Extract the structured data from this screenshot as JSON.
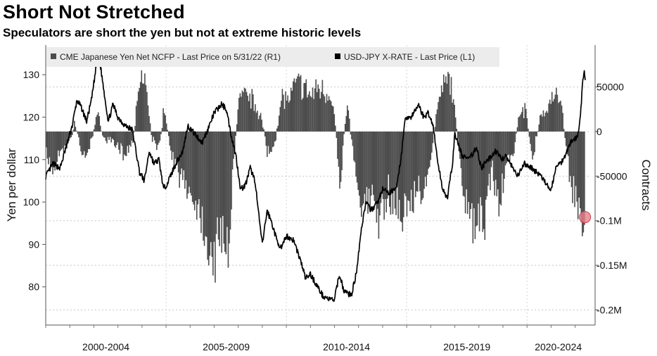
{
  "title": "Short Not Stretched",
  "subtitle": "Speculators are short the yen but not at extreme historic levels",
  "chart_data": {
    "type": "bar+line",
    "legend": {
      "placement": "top-left",
      "entries": [
        {
          "label": "CME Japanese Yen Net NCFP - Last Price on 5/31/22 (R1)",
          "color": "#4d4d4d",
          "type": "bar"
        },
        {
          "label": "USD-JPY X-RATE - Last Price (L1)",
          "color": "#000000",
          "type": "line"
        }
      ]
    },
    "left_axis": {
      "label": "Yen per dollar",
      "ticks": [
        80,
        90,
        100,
        110,
        120,
        130
      ],
      "range": [
        71,
        137
      ]
    },
    "right_axis": {
      "label": "Contracts",
      "ticks": [
        50000,
        0,
        -50000,
        -100000,
        -150000,
        -200000
      ],
      "tick_labels": [
        "50000",
        "0",
        "-50000",
        "-0.1M",
        "-0.15M",
        "-0.2M"
      ],
      "range": [
        -217000,
        97000
      ]
    },
    "x_axis": {
      "categories": [
        "2000-2004",
        "2005-2009",
        "2010-2014",
        "2015-2019",
        "2020-2024"
      ],
      "range": [
        2000.0,
        2022.42
      ]
    },
    "grid": "horizontal dashed",
    "highlight_point": {
      "x": 2022.41,
      "y": -96000,
      "color": "#e8808a"
    },
    "series": [
      {
        "name": "USD-JPY X-RATE - Last Price (L1)",
        "axis": "left",
        "points": [
          [
            2000.0,
            106
          ],
          [
            2000.3,
            109
          ],
          [
            2000.6,
            108
          ],
          [
            2000.9,
            114
          ],
          [
            2001.1,
            118
          ],
          [
            2001.3,
            124
          ],
          [
            2001.5,
            122
          ],
          [
            2001.7,
            119
          ],
          [
            2001.9,
            124
          ],
          [
            2002.1,
            132
          ],
          [
            2002.2,
            135
          ],
          [
            2002.4,
            127
          ],
          [
            2002.6,
            119
          ],
          [
            2002.8,
            123
          ],
          [
            2003.0,
            120
          ],
          [
            2003.3,
            118
          ],
          [
            2003.6,
            117
          ],
          [
            2003.9,
            107
          ],
          [
            2004.1,
            105
          ],
          [
            2004.3,
            112
          ],
          [
            2004.5,
            109
          ],
          [
            2004.7,
            110
          ],
          [
            2004.9,
            103
          ],
          [
            2005.1,
            105
          ],
          [
            2005.4,
            109
          ],
          [
            2005.7,
            112
          ],
          [
            2005.9,
            118
          ],
          [
            2006.2,
            116
          ],
          [
            2006.5,
            114
          ],
          [
            2006.8,
            118
          ],
          [
            2007.0,
            121
          ],
          [
            2007.3,
            123
          ],
          [
            2007.5,
            122
          ],
          [
            2007.7,
            116
          ],
          [
            2007.9,
            111
          ],
          [
            2008.1,
            103
          ],
          [
            2008.3,
            104
          ],
          [
            2008.5,
            108
          ],
          [
            2008.7,
            105
          ],
          [
            2008.85,
            97
          ],
          [
            2009.0,
            90
          ],
          [
            2009.2,
            98
          ],
          [
            2009.4,
            95
          ],
          [
            2009.6,
            91
          ],
          [
            2009.8,
            89
          ],
          [
            2010.0,
            92
          ],
          [
            2010.3,
            91
          ],
          [
            2010.6,
            86
          ],
          [
            2010.8,
            82
          ],
          [
            2011.0,
            83
          ],
          [
            2011.2,
            81
          ],
          [
            2011.5,
            78
          ],
          [
            2011.8,
            77
          ],
          [
            2012.0,
            77
          ],
          [
            2012.2,
            83
          ],
          [
            2012.4,
            79
          ],
          [
            2012.7,
            78
          ],
          [
            2012.9,
            83
          ],
          [
            2013.1,
            93
          ],
          [
            2013.3,
            100
          ],
          [
            2013.5,
            98
          ],
          [
            2013.8,
            100
          ],
          [
            2014.0,
            103
          ],
          [
            2014.3,
            102
          ],
          [
            2014.6,
            104
          ],
          [
            2014.8,
            112
          ],
          [
            2014.95,
            120
          ],
          [
            2015.2,
            120
          ],
          [
            2015.5,
            123
          ],
          [
            2015.7,
            120
          ],
          [
            2015.9,
            121
          ],
          [
            2016.1,
            118
          ],
          [
            2016.3,
            109
          ],
          [
            2016.5,
            103
          ],
          [
            2016.7,
            101
          ],
          [
            2016.9,
            109
          ],
          [
            2017.0,
            116
          ],
          [
            2017.3,
            111
          ],
          [
            2017.6,
            110
          ],
          [
            2017.9,
            113
          ],
          [
            2018.1,
            108
          ],
          [
            2018.4,
            110
          ],
          [
            2018.7,
            112
          ],
          [
            2018.95,
            110
          ],
          [
            2019.1,
            111
          ],
          [
            2019.4,
            108
          ],
          [
            2019.6,
            106
          ],
          [
            2019.9,
            109
          ],
          [
            2020.2,
            108
          ],
          [
            2020.4,
            107
          ],
          [
            2020.6,
            106
          ],
          [
            2020.8,
            104
          ],
          [
            2021.0,
            103
          ],
          [
            2021.2,
            108
          ],
          [
            2021.5,
            110
          ],
          [
            2021.8,
            114
          ],
          [
            2022.0,
            115
          ],
          [
            2022.15,
            116
          ],
          [
            2022.25,
            123
          ],
          [
            2022.32,
            129
          ],
          [
            2022.38,
            131
          ],
          [
            2022.42,
            129
          ]
        ]
      },
      {
        "name": "CME Japanese Yen Net NCFP - Last Price on 5/31/22 (R1)",
        "axis": "right",
        "points": [
          [
            2000.0,
            -30000
          ],
          [
            2000.3,
            -40000
          ],
          [
            2000.6,
            -20000
          ],
          [
            2000.9,
            -15000
          ],
          [
            2001.2,
            10000
          ],
          [
            2001.5,
            -25000
          ],
          [
            2001.8,
            -20000
          ],
          [
            2002.1,
            20000
          ],
          [
            2002.4,
            -5000
          ],
          [
            2002.7,
            -15000
          ],
          [
            2003.0,
            -20000
          ],
          [
            2003.3,
            -25000
          ],
          [
            2003.6,
            -10000
          ],
          [
            2003.9,
            55000
          ],
          [
            2004.1,
            60000
          ],
          [
            2004.4,
            -10000
          ],
          [
            2004.7,
            -15000
          ],
          [
            2004.9,
            30000
          ],
          [
            2005.2,
            -30000
          ],
          [
            2005.5,
            -45000
          ],
          [
            2005.8,
            -60000
          ],
          [
            2006.1,
            -75000
          ],
          [
            2006.4,
            -90000
          ],
          [
            2006.7,
            -120000
          ],
          [
            2007.0,
            -140000
          ],
          [
            2007.3,
            -110000
          ],
          [
            2007.6,
            -125000
          ],
          [
            2007.8,
            -30000
          ],
          [
            2008.0,
            35000
          ],
          [
            2008.3,
            40000
          ],
          [
            2008.6,
            35000
          ],
          [
            2008.9,
            20000
          ],
          [
            2009.2,
            -25000
          ],
          [
            2009.5,
            -15000
          ],
          [
            2009.8,
            40000
          ],
          [
            2010.1,
            35000
          ],
          [
            2010.4,
            55000
          ],
          [
            2010.7,
            50000
          ],
          [
            2011.0,
            40000
          ],
          [
            2011.3,
            50000
          ],
          [
            2011.6,
            45000
          ],
          [
            2011.9,
            40000
          ],
          [
            2012.2,
            -55000
          ],
          [
            2012.5,
            30000
          ],
          [
            2012.8,
            -30000
          ],
          [
            2013.0,
            -70000
          ],
          [
            2013.3,
            -85000
          ],
          [
            2013.6,
            -75000
          ],
          [
            2013.9,
            -105000
          ],
          [
            2014.2,
            -70000
          ],
          [
            2014.5,
            -75000
          ],
          [
            2014.8,
            -95000
          ],
          [
            2015.0,
            -85000
          ],
          [
            2015.3,
            -70000
          ],
          [
            2015.6,
            -65000
          ],
          [
            2015.9,
            -55000
          ],
          [
            2016.2,
            20000
          ],
          [
            2016.5,
            50000
          ],
          [
            2016.8,
            60000
          ],
          [
            2017.0,
            15000
          ],
          [
            2017.3,
            -70000
          ],
          [
            2017.6,
            -100000
          ],
          [
            2017.9,
            -110000
          ],
          [
            2018.2,
            -100000
          ],
          [
            2018.5,
            -40000
          ],
          [
            2018.8,
            -85000
          ],
          [
            2019.1,
            -40000
          ],
          [
            2019.4,
            -30000
          ],
          [
            2019.7,
            30000
          ],
          [
            2019.9,
            25000
          ],
          [
            2020.2,
            -30000
          ],
          [
            2020.5,
            15000
          ],
          [
            2020.8,
            25000
          ],
          [
            2021.1,
            40000
          ],
          [
            2021.4,
            35000
          ],
          [
            2021.7,
            -40000
          ],
          [
            2021.9,
            -65000
          ],
          [
            2022.1,
            -90000
          ],
          [
            2022.3,
            -100000
          ],
          [
            2022.41,
            -96000
          ]
        ]
      }
    ]
  }
}
